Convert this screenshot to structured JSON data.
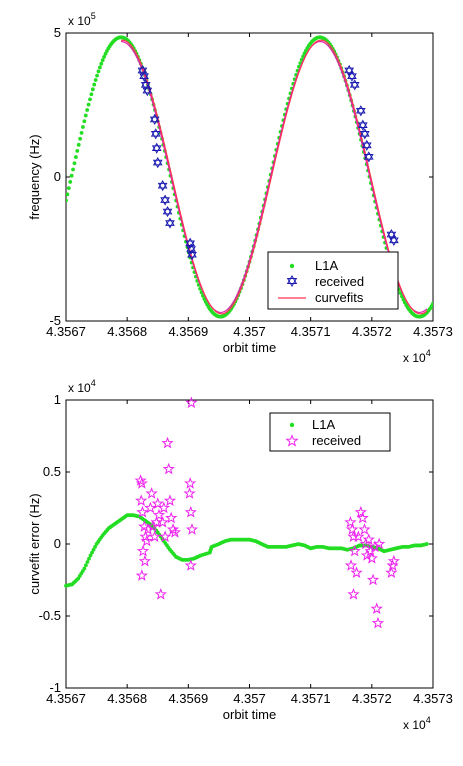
{
  "chart_data": [
    {
      "type": "scatter",
      "xlabel": "orbit time",
      "ylabel": "frequency (Hz)",
      "x_multiplier": "x 10",
      "x_exponent": "4",
      "y_multiplier": "x 10",
      "y_exponent": "5",
      "xlim": [
        4.3567,
        4.3573
      ],
      "ylim": [
        -5,
        5
      ],
      "x_ticks": [
        "4.3567",
        "4.3568",
        "4.3569",
        "4.357",
        "4.3571",
        "4.3572",
        "4.3573"
      ],
      "y_ticks": [
        "5",
        "0",
        "-5"
      ],
      "legend": [
        "L1A",
        "received",
        "curvefits"
      ],
      "legend_position": "lower-right",
      "grid": false,
      "colors": {
        "L1A": "#22dd22",
        "received": "#1a1ab0",
        "curvefits": "#ff3355",
        "fit2": "#dd22aa"
      },
      "l1a_model": {
        "amplitude": 4.85,
        "period": 0.000325,
        "peak_x": 4.35679
      },
      "curvefit_model": {
        "amplitude": 4.75,
        "period": 0.000325,
        "peak_x": 4.356792
      },
      "curvefit_range": [
        4.35679,
        4.35729
      ],
      "received_clusters": [
        {
          "x_range": [
            4.356825,
            4.356833
          ],
          "y_values": [
            3.7,
            3.5,
            3.2,
            3.0
          ]
        },
        {
          "x_range": [
            4.356845,
            4.35685
          ],
          "y_values": [
            2.0,
            1.5,
            1.0,
            0.5
          ]
        },
        {
          "x_range": [
            4.356858,
            4.35687
          ],
          "y_values": [
            -0.3,
            -0.8,
            -1.2,
            -1.6
          ]
        },
        {
          "x_range": [
            4.356903,
            4.356906
          ],
          "y_values": [
            -2.3,
            -2.5,
            -2.7
          ]
        },
        {
          "x_range": [
            4.357163,
            4.357172
          ],
          "y_values": [
            3.7,
            3.5,
            3.2
          ]
        },
        {
          "x_range": [
            4.357182,
            4.357195
          ],
          "y_values": [
            2.3,
            1.8,
            1.5,
            1.1,
            0.7
          ]
        },
        {
          "x_range": [
            4.357232,
            4.357236
          ],
          "y_values": [
            -2.0,
            -2.2
          ]
        }
      ]
    },
    {
      "type": "scatter",
      "xlabel": "orbit time",
      "ylabel": "curvefit error (Hz)",
      "x_multiplier": "x 10",
      "x_exponent": "4",
      "y_multiplier": "x 10",
      "y_exponent": "4",
      "xlim": [
        4.3567,
        4.3573
      ],
      "ylim": [
        -1,
        1
      ],
      "x_ticks": [
        "4.3567",
        "4.3568",
        "4.3569",
        "4.357",
        "4.3571",
        "4.3572",
        "4.3573"
      ],
      "y_ticks": [
        "1",
        "0.5",
        "0",
        "-0.5",
        "-1"
      ],
      "legend": [
        "L1A",
        "received"
      ],
      "legend_position": "top-right",
      "grid": false,
      "colors": {
        "L1A": "#22dd22",
        "received": "#ee22ee"
      },
      "l1a_error_points": [
        [
          4.3567,
          -0.29
        ],
        [
          4.35671,
          -0.28
        ],
        [
          4.35672,
          -0.24
        ],
        [
          4.35673,
          -0.17
        ],
        [
          4.35674,
          -0.08
        ],
        [
          4.35675,
          0.0
        ],
        [
          4.35676,
          0.06
        ],
        [
          4.35677,
          0.11
        ],
        [
          4.35678,
          0.14
        ],
        [
          4.35679,
          0.17
        ],
        [
          4.3568,
          0.2
        ],
        [
          4.35681,
          0.2
        ],
        [
          4.35682,
          0.19
        ],
        [
          4.35683,
          0.16
        ],
        [
          4.35684,
          0.13
        ],
        [
          4.35685,
          0.08
        ],
        [
          4.35686,
          0.02
        ],
        [
          4.35687,
          -0.04
        ],
        [
          4.35688,
          -0.09
        ],
        [
          4.35689,
          -0.11
        ],
        [
          4.3569,
          -0.11
        ],
        [
          4.35691,
          -0.1
        ],
        [
          4.35692,
          -0.08
        ],
        [
          4.356935,
          -0.06
        ],
        [
          4.356938,
          -0.02
        ],
        [
          4.35695,
          0.0
        ],
        [
          4.35696,
          0.02
        ],
        [
          4.35697,
          0.03
        ],
        [
          4.35698,
          0.03
        ],
        [
          4.35699,
          0.03
        ],
        [
          4.357,
          0.03
        ],
        [
          4.35701,
          0.02
        ],
        [
          4.35702,
          0.0
        ],
        [
          4.35703,
          -0.02
        ],
        [
          4.35704,
          -0.02
        ],
        [
          4.35705,
          -0.02
        ],
        [
          4.35706,
          -0.02
        ],
        [
          4.35707,
          -0.01
        ],
        [
          4.35708,
          0.0
        ],
        [
          4.35709,
          -0.01
        ],
        [
          4.3571,
          -0.03
        ],
        [
          4.35711,
          -0.02
        ],
        [
          4.35712,
          -0.02
        ],
        [
          4.35713,
          -0.03
        ],
        [
          4.35714,
          -0.03
        ],
        [
          4.35715,
          -0.03
        ],
        [
          4.35716,
          -0.04
        ],
        [
          4.35717,
          -0.03
        ],
        [
          4.35718,
          -0.01
        ],
        [
          4.35719,
          -0.01
        ],
        [
          4.3572,
          -0.02
        ],
        [
          4.35721,
          -0.03
        ],
        [
          4.35722,
          -0.05
        ],
        [
          4.35723,
          -0.04
        ],
        [
          4.35724,
          -0.03
        ],
        [
          4.35725,
          -0.02
        ],
        [
          4.35726,
          -0.02
        ],
        [
          4.35727,
          -0.01
        ],
        [
          4.35728,
          -0.01
        ],
        [
          4.35729,
          0.0
        ]
      ],
      "received_points": [
        [
          4.356822,
          0.44
        ],
        [
          4.356824,
          0.42
        ],
        [
          4.356823,
          0.3
        ],
        [
          4.356825,
          0.22
        ],
        [
          4.356828,
          0.12
        ],
        [
          4.35683,
          0.05
        ],
        [
          4.356826,
          -0.05
        ],
        [
          4.356829,
          -0.12
        ],
        [
          4.356824,
          -0.22
        ],
        [
          4.356832,
          0.02
        ],
        [
          4.356834,
          0.1
        ],
        [
          4.356838,
          0.25
        ],
        [
          4.35684,
          0.35
        ],
        [
          4.356842,
          0.12
        ],
        [
          4.356845,
          0.05
        ],
        [
          4.356848,
          0.15
        ],
        [
          4.35685,
          0.28
        ],
        [
          4.356852,
          0.2
        ],
        [
          4.356855,
          -0.35
        ],
        [
          4.356858,
          0.15
        ],
        [
          4.35686,
          0.25
        ],
        [
          4.356862,
          0.05
        ],
        [
          4.356866,
          0.7
        ],
        [
          4.356868,
          0.52
        ],
        [
          4.35687,
          0.3
        ],
        [
          4.356872,
          0.18
        ],
        [
          4.356875,
          0.1
        ],
        [
          4.356878,
          0.08
        ],
        [
          4.356905,
          0.98
        ],
        [
          4.356903,
          0.42
        ],
        [
          4.356902,
          0.35
        ],
        [
          4.356904,
          0.22
        ],
        [
          4.356906,
          0.1
        ],
        [
          4.356904,
          -0.15
        ],
        [
          4.357165,
          0.15
        ],
        [
          4.357168,
          0.1
        ],
        [
          4.35717,
          0.05
        ],
        [
          4.357172,
          -0.05
        ],
        [
          4.357166,
          -0.15
        ],
        [
          4.35717,
          -0.35
        ],
        [
          4.357175,
          -0.2
        ],
        [
          4.357178,
          0.05
        ],
        [
          4.357182,
          0.22
        ],
        [
          4.357185,
          0.18
        ],
        [
          4.357188,
          0.1
        ],
        [
          4.35719,
          0.0
        ],
        [
          4.357192,
          -0.08
        ],
        [
          4.357195,
          0.03
        ],
        [
          4.357198,
          -0.05
        ],
        [
          4.3572,
          -0.1
        ],
        [
          4.357202,
          -0.25
        ],
        [
          4.357205,
          -0.02
        ],
        [
          4.357208,
          -0.45
        ],
        [
          4.35721,
          -0.55
        ],
        [
          4.357212,
          0.0
        ],
        [
          4.357232,
          -0.2
        ],
        [
          4.357234,
          -0.15
        ],
        [
          4.357236,
          -0.12
        ]
      ]
    }
  ]
}
